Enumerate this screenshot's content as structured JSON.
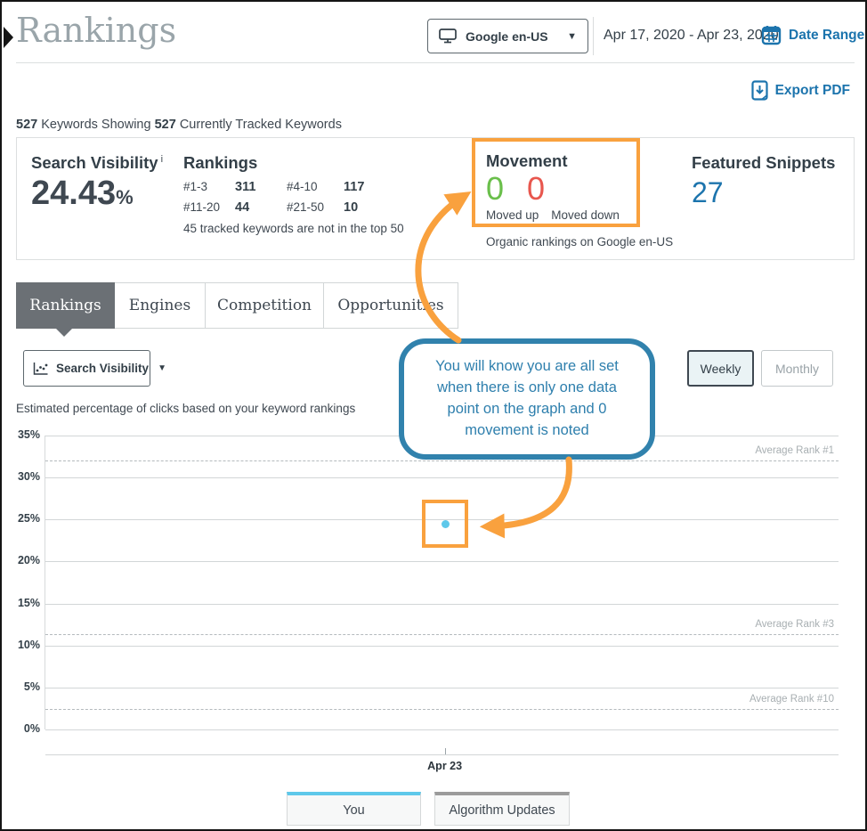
{
  "header": {
    "title": "Rankings",
    "engine_selector": {
      "label": "Google en-US"
    },
    "date_range_text": "Apr 17, 2020 - Apr 23, 2020",
    "date_range_button": "Date Range",
    "export_pdf": "Export PDF"
  },
  "keywords_summary": {
    "showing_count": "527",
    "showing_label": "Keywords Showing",
    "tracked_count": "527",
    "tracked_label": "Currently Tracked Keywords"
  },
  "stats": {
    "search_visibility": {
      "label": "Search Visibility",
      "info": "i",
      "value": "24.43",
      "unit": "%"
    },
    "rankings": {
      "label": "Rankings",
      "buckets": [
        {
          "range": "#1-3",
          "count": "311"
        },
        {
          "range": "#4-10",
          "count": "117"
        },
        {
          "range": "#11-20",
          "count": "44"
        },
        {
          "range": "#21-50",
          "count": "10"
        }
      ],
      "footnote": "45 tracked keywords are not in the top 50"
    },
    "movement": {
      "label": "Movement",
      "up_value": "0",
      "up_label": "Moved up",
      "down_value": "0",
      "down_label": "Moved down",
      "footnote": "Organic rankings on Google en-US"
    },
    "featured_snippets": {
      "label": "Featured Snippets",
      "value": "27"
    }
  },
  "tabs": [
    {
      "label": "Rankings",
      "active": true
    },
    {
      "label": "Engines",
      "active": false
    },
    {
      "label": "Competition",
      "active": false
    },
    {
      "label": "Opportunities",
      "active": false
    }
  ],
  "controls": {
    "metric_selector": "Search Visibility",
    "weekly_label": "Weekly",
    "monthly_label": "Monthly"
  },
  "annotations": {
    "callout_text": "You will know you are all set when there is only one data point on the graph and 0 movement is noted"
  },
  "chart_data": {
    "type": "scatter",
    "title": "Estimated percentage of clicks based on your keyword rankings",
    "x": [
      "Apr 23"
    ],
    "series": [
      {
        "name": "You",
        "values": [
          24.43
        ],
        "color": "#5ec8ea"
      }
    ],
    "ylim": [
      0,
      35
    ],
    "yticks": [
      {
        "value": 35,
        "label": "35%"
      },
      {
        "value": 30,
        "label": "30%"
      },
      {
        "value": 25,
        "label": "25%"
      },
      {
        "value": 20,
        "label": "20%"
      },
      {
        "value": 15,
        "label": "15%"
      },
      {
        "value": 10,
        "label": "10%"
      },
      {
        "value": 5,
        "label": "5%"
      },
      {
        "value": 0,
        "label": "0%"
      }
    ],
    "reference_lines": [
      {
        "label": "Average Rank #1",
        "value": 32
      },
      {
        "label": "Average Rank #3",
        "value": 11.4
      },
      {
        "label": "Average Rank #10",
        "value": 2.4
      }
    ],
    "grid": true,
    "legend": [
      "You",
      "Algorithm Updates"
    ],
    "legend_colors": {
      "You": "#5ec8ea",
      "Algorithm Updates": "#9b9b9b"
    }
  },
  "colors": {
    "accent_blue": "#1c74ad",
    "moved_up_green": "#6abf4b",
    "moved_down_red": "#e8574e",
    "annotation_orange": "#f9a13e",
    "callout_blue": "#2e7fad",
    "active_tab_gray": "#6b7075"
  }
}
